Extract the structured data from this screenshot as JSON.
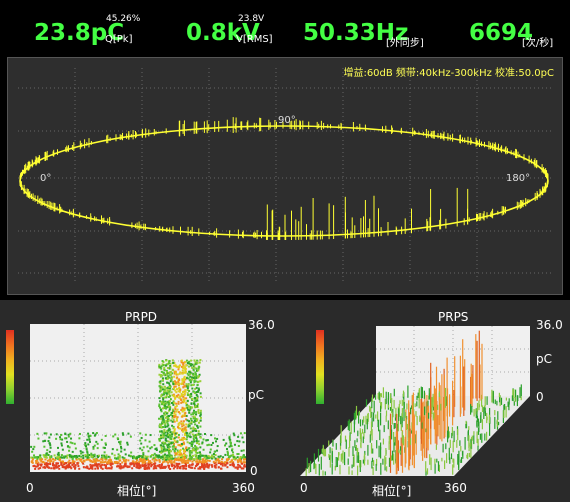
{
  "header": {
    "charge": {
      "value": "23.8pC",
      "unit": "Q[Pk]",
      "sup": "45.26%"
    },
    "voltage": {
      "value": "0.8kV",
      "unit": "V[RMS]",
      "sup": "23.8V"
    },
    "frequency": {
      "value": "50.33Hz",
      "unit": "[外同步]"
    },
    "rate": {
      "value": "6694",
      "unit": "[次/秒]"
    }
  },
  "ellipse": {
    "info": "增益:60dB  频带:40kHz-300kHz  校准:50.0pC",
    "label_0": "0°",
    "label_90": "90°",
    "label_180": "180°",
    "trace_color": "#ffff33"
  },
  "prpd": {
    "title": "PRPD",
    "y_max": "36.0",
    "y_unit": "pC",
    "y_min": "0",
    "x_min": "0",
    "x_max": "360",
    "x_label": "相位[°]"
  },
  "prps": {
    "title": "PRPS",
    "y_max": "36.0",
    "y_unit": "pC",
    "y_min": "0",
    "x_min": "0",
    "x_max": "360",
    "x_label": "相位[°]"
  },
  "colors": {
    "accent_green": "#44ff44",
    "trace_yellow": "#ffff33"
  }
}
